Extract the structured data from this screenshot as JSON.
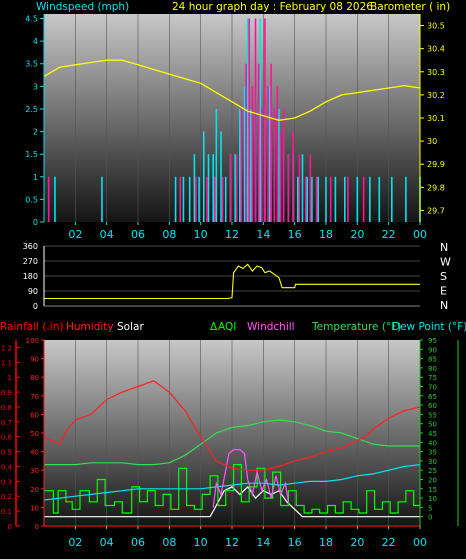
{
  "header": {
    "left": "Windspeed (mph)",
    "center": "24 hour graph day : February 08 2026",
    "right": "Barometer ( in)"
  },
  "colors": {
    "wind": "#00e5ee",
    "gust": "#ff1493",
    "baro": "#ffff00",
    "direction": "#ffff00",
    "rain": "#ff0000",
    "humidity": "#ff2020",
    "solar": "#ffffff",
    "aqi": "#00ff00",
    "windchill": "#ff55ff",
    "temperature": "#33dd55",
    "dewpoint": "#00e5ee",
    "green_scale": "#22cc22"
  },
  "legend3": {
    "rainfall": "Rainfall (.in)",
    "humidity": "Humidity",
    "solar": "Solar",
    "aqi": "AQI",
    "windchill": "Windchill",
    "temperature": "Temperature (°F)",
    "dewpoint": "Dew Point (°F)"
  },
  "chart_data": [
    {
      "id": "wind",
      "type": "line",
      "title": "24 hour graph day : February 08 2026",
      "xlabel": "",
      "ylabel": "Windspeed (mph)",
      "y2label": "Barometer ( in)",
      "x_range": [
        0,
        24
      ],
      "x_ticks": [
        "02",
        "04",
        "06",
        "08",
        "10",
        "12",
        "14",
        "16",
        "18",
        "20",
        "22",
        "00"
      ],
      "x_tick_hours": [
        2,
        4,
        6,
        8,
        10,
        12,
        14,
        16,
        18,
        20,
        22,
        24
      ],
      "ylim": [
        0,
        4.6
      ],
      "y_ticks": [
        0,
        0.5,
        1,
        1.5,
        2,
        2.5,
        3,
        3.5,
        4,
        4.5
      ],
      "y_tick_labels": [
        "0",
        "0.5",
        "1",
        "1.5",
        "2",
        "2.5",
        "3",
        "3.5",
        "4",
        "4.5"
      ],
      "y2lim": [
        29.65,
        30.55
      ],
      "y2_ticks": [
        29.7,
        29.8,
        29.9,
        30,
        30.1,
        30.2,
        30.3,
        30.4,
        30.5
      ],
      "y2_tick_labels": [
        "29.7",
        "29.8",
        "29.9",
        "30",
        "30.1",
        "30.2",
        "30.3",
        "30.4",
        "30.5"
      ],
      "series": [
        {
          "key": "barometer",
          "axis": "right",
          "style": "line",
          "color": "#ffff00",
          "x": [
            0,
            0.5,
            1,
            2,
            3,
            4,
            5,
            6,
            7,
            8,
            9,
            10,
            11,
            12,
            13,
            14,
            15,
            16,
            17,
            18,
            19,
            20,
            21,
            22,
            23,
            24
          ],
          "values": [
            30.28,
            30.3,
            30.32,
            30.33,
            30.34,
            30.35,
            30.35,
            30.33,
            30.31,
            30.29,
            30.27,
            30.25,
            30.21,
            30.17,
            30.13,
            30.11,
            30.09,
            30.1,
            30.13,
            30.17,
            30.2,
            30.21,
            30.22,
            30.23,
            30.24,
            30.23
          ]
        },
        {
          "key": "wind_speed",
          "axis": "left",
          "style": "spikes",
          "color": "#00e5ee",
          "x": [
            0.7,
            3.7,
            8.4,
            8.9,
            9.3,
            9.6,
            9.9,
            10.2,
            10.5,
            10.8,
            11.0,
            11.3,
            11.6,
            11.9,
            12.2,
            12.5,
            12.8,
            13.0,
            13.2,
            13.5,
            13.8,
            14.1,
            14.4,
            14.7,
            15.0,
            15.3,
            15.6,
            15.9,
            16.2,
            16.5,
            16.8,
            17.1,
            17.5,
            18.0,
            18.6,
            19.2,
            20.0,
            20.8,
            21.4,
            22.2,
            23.1,
            24.0
          ],
          "values": [
            1.0,
            1.0,
            1.0,
            1.0,
            1.0,
            1.5,
            1.0,
            2.0,
            1.5,
            1.5,
            2.5,
            2.0,
            1.0,
            1.5,
            1.5,
            2.5,
            3.0,
            4.5,
            2.5,
            3.0,
            4.5,
            2.5,
            3.0,
            2.0,
            2.5,
            1.5,
            1.5,
            1.5,
            1.0,
            1.5,
            1.0,
            1.0,
            1.0,
            1.0,
            1.0,
            1.0,
            1.0,
            1.0,
            1.0,
            1.0,
            1.0,
            1.0
          ]
        },
        {
          "key": "wind_gust",
          "axis": "left",
          "style": "spikes",
          "color": "#ff1493",
          "x": [
            0.3,
            8.7,
            9.7,
            10.4,
            10.9,
            11.4,
            11.9,
            12.3,
            12.6,
            12.9,
            13.1,
            13.3,
            13.5,
            13.7,
            13.9,
            14.1,
            14.3,
            14.5,
            14.7,
            14.9,
            15.1,
            15.3,
            15.6,
            15.9,
            16.3,
            16.7,
            17.0,
            17.4,
            18.3,
            19.4,
            20.4
          ],
          "values": [
            1.0,
            1.0,
            1.0,
            1.0,
            1.0,
            1.0,
            1.5,
            1.5,
            2.5,
            3.5,
            4.5,
            3.0,
            4.5,
            3.5,
            2.5,
            4.5,
            3.0,
            3.5,
            2.5,
            3.0,
            2.0,
            2.5,
            1.5,
            2.0,
            1.5,
            1.0,
            1.5,
            1.0,
            1.0,
            1.0,
            1.0
          ]
        }
      ]
    },
    {
      "id": "direction",
      "type": "line",
      "title": "",
      "x_range": [
        0,
        24
      ],
      "ylim": [
        0,
        360
      ],
      "y_ticks": [
        0,
        90,
        180,
        270,
        360
      ],
      "y_tick_labels": [
        "0",
        "90",
        "180",
        "270",
        "360"
      ],
      "compass_labels": [
        "N",
        "W",
        "S",
        "E",
        "N"
      ],
      "series": [
        {
          "key": "wind_direction",
          "color": "#ffff00",
          "x": [
            0,
            11.7,
            12.0,
            12.1,
            12.4,
            12.7,
            13.0,
            13.3,
            13.6,
            13.9,
            14.1,
            14.4,
            14.7,
            15.0,
            15.2,
            16.0,
            16.05,
            24
          ],
          "values": [
            45,
            45,
            50,
            200,
            240,
            225,
            250,
            210,
            240,
            230,
            200,
            210,
            190,
            170,
            110,
            110,
            130,
            130
          ]
        }
      ]
    },
    {
      "id": "climate",
      "type": "line",
      "title": "",
      "x_range": [
        0,
        24
      ],
      "x_ticks": [
        "02",
        "04",
        "06",
        "08",
        "10",
        "12",
        "14",
        "16",
        "18",
        "20",
        "22",
        "00"
      ],
      "x_tick_hours": [
        2,
        4,
        6,
        8,
        10,
        12,
        14,
        16,
        18,
        20,
        22,
        24
      ],
      "y_left_outer_ticks": [
        "0",
        "0.1",
        "0.2",
        "0.3",
        "0.4",
        "0.5",
        "0.6",
        "0.7",
        "0.8",
        "0.9",
        "1",
        "1.1",
        "1.2"
      ],
      "y_left_outer_lim": [
        0,
        1.25
      ],
      "y_left_inner_ticks": [
        "0",
        "10",
        "20",
        "30",
        "40",
        "50",
        "60",
        "70",
        "80",
        "90",
        "100"
      ],
      "y_left_inner_lim": [
        0,
        100
      ],
      "y_right_ticks": [
        "0",
        "5",
        "10",
        "15",
        "20",
        "25",
        "30",
        "35",
        "40",
        "45",
        "50",
        "55",
        "60",
        "65",
        "70",
        "75",
        "80",
        "85",
        "90",
        "95"
      ],
      "y_right_lim": [
        -5,
        95
      ],
      "series": [
        {
          "key": "humidity",
          "axis": "inner-left",
          "color": "#ff2020",
          "x": [
            0,
            0.5,
            1,
            1.5,
            2,
            3,
            4,
            5,
            6,
            7,
            8,
            9,
            10,
            11,
            12,
            13,
            14,
            15,
            16,
            17,
            18,
            19,
            20,
            20.5,
            21,
            22,
            23,
            24
          ],
          "values": [
            48,
            46,
            44,
            52,
            57,
            60,
            68,
            72,
            75,
            78,
            72,
            62,
            48,
            35,
            31,
            30,
            30,
            32,
            35,
            37,
            40,
            42,
            46,
            48,
            52,
            58,
            62,
            64
          ]
        },
        {
          "key": "temperature",
          "axis": "right",
          "color": "#33dd55",
          "x": [
            0,
            1,
            2,
            3,
            4,
            5,
            6,
            7,
            8,
            9,
            10,
            11,
            12,
            13,
            14,
            15,
            16,
            17,
            18,
            19,
            20,
            21,
            22,
            23,
            24
          ],
          "values": [
            28,
            28,
            28,
            29,
            29,
            29,
            28,
            28,
            29,
            33,
            39,
            45,
            48,
            49,
            51,
            52,
            51,
            49,
            46,
            45,
            42,
            39,
            38,
            38,
            38
          ]
        },
        {
          "key": "dewpoint",
          "axis": "right",
          "color": "#00e5ee",
          "x": [
            0,
            1,
            2,
            3,
            4,
            5,
            6,
            7,
            8,
            9,
            10,
            11,
            12,
            13,
            14,
            15,
            16,
            17,
            18,
            19,
            20,
            21,
            22,
            23,
            24
          ],
          "values": [
            9,
            10,
            11,
            12,
            13,
            14,
            15,
            15,
            15,
            15,
            15,
            16,
            17,
            18,
            18,
            17,
            18,
            19,
            19,
            20,
            22,
            23,
            25,
            27,
            28
          ]
        },
        {
          "key": "windchill",
          "axis": "right",
          "color": "#ff55ff",
          "x": [
            10.8,
            11.0,
            11.3,
            11.6,
            11.8,
            12.1,
            12.5,
            12.8,
            13.0,
            13.3,
            13.6,
            13.9,
            14.2,
            14.5,
            14.8,
            15.1,
            15.4,
            15.6
          ],
          "values": [
            5,
            18,
            12,
            25,
            34,
            36,
            36,
            34,
            20,
            12,
            24,
            14,
            20,
            10,
            22,
            12,
            18,
            8
          ]
        },
        {
          "key": "solar",
          "axis": "right",
          "color": "#ffffff",
          "x": [
            0,
            10.6,
            11.0,
            11.5,
            12.0,
            12.5,
            13.0,
            13.5,
            14.0,
            14.5,
            15.0,
            15.5,
            16.0,
            16.5,
            17.0,
            24
          ],
          "values": [
            0,
            0,
            6,
            14,
            16,
            12,
            16,
            10,
            14,
            12,
            14,
            8,
            4,
            0,
            0,
            0
          ]
        },
        {
          "key": "aqi",
          "axis": "right",
          "color": "#00ff00",
          "style": "step",
          "x": [
            0,
            0.6,
            0.9,
            1.4,
            1.8,
            2.3,
            2.9,
            3.4,
            3.9,
            4.5,
            5.0,
            5.6,
            6.1,
            6.6,
            7.1,
            7.6,
            8.1,
            8.6,
            9.1,
            9.6,
            10.1,
            10.6,
            11.1,
            11.6,
            12.1,
            12.6,
            13.1,
            13.6,
            14.1,
            14.6,
            15.1,
            15.6,
            16.1,
            16.6,
            17.1,
            17.6,
            18.1,
            18.6,
            19.1,
            19.6,
            20.1,
            20.6,
            21.1,
            21.6,
            22.1,
            22.6,
            23.1,
            23.6,
            24
          ],
          "values": [
            14,
            2,
            14,
            8,
            4,
            14,
            8,
            20,
            6,
            8,
            2,
            16,
            8,
            14,
            6,
            12,
            4,
            26,
            6,
            4,
            12,
            22,
            6,
            14,
            28,
            8,
            16,
            26,
            10,
            24,
            6,
            14,
            6,
            2,
            4,
            2,
            6,
            2,
            8,
            4,
            2,
            14,
            4,
            8,
            2,
            8,
            14,
            6,
            8
          ]
        },
        {
          "key": "rainfall",
          "axis": "outer-left",
          "color": "#ff0000",
          "x": [
            0,
            24
          ],
          "values": [
            0,
            0
          ]
        }
      ]
    }
  ]
}
